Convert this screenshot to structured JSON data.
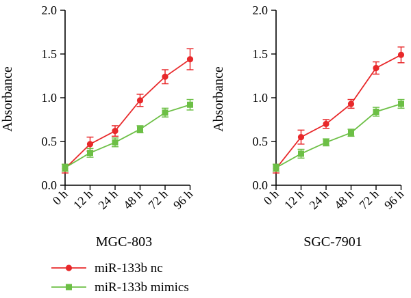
{
  "chart_data": [
    {
      "type": "line",
      "title": "MGC-803",
      "ylabel": "Absorbance",
      "xlabel": "",
      "categories": [
        "0 h",
        "12 h",
        "24 h",
        "48 h",
        "72 h",
        "96 h"
      ],
      "ylim": [
        0,
        2.0
      ],
      "yticks": [
        "0.0",
        "0.5",
        "1.0",
        "1.5",
        "2.0"
      ],
      "series": [
        {
          "name": "miR-133b nc",
          "color": "#e8282a",
          "marker": "circle",
          "values": [
            0.19,
            0.47,
            0.62,
            0.97,
            1.24,
            1.44
          ],
          "errors": [
            0.05,
            0.08,
            0.06,
            0.07,
            0.08,
            0.12
          ]
        },
        {
          "name": "miR-133b mimics",
          "color": "#6cbf45",
          "marker": "square",
          "values": [
            0.2,
            0.37,
            0.49,
            0.64,
            0.83,
            0.92
          ],
          "errors": [
            0.04,
            0.05,
            0.05,
            0.04,
            0.05,
            0.06
          ]
        }
      ]
    },
    {
      "type": "line",
      "title": "SGC-7901",
      "ylabel": "Absorbance",
      "xlabel": "",
      "categories": [
        "0 h",
        "12 h",
        "24 h",
        "48 h",
        "72 h",
        "96 h"
      ],
      "ylim": [
        0,
        2.0
      ],
      "yticks": [
        "0.0",
        "0.5",
        "1.0",
        "1.5",
        "2.0"
      ],
      "series": [
        {
          "name": "miR-133b nc",
          "color": "#e8282a",
          "marker": "circle",
          "values": [
            0.19,
            0.55,
            0.7,
            0.93,
            1.34,
            1.49
          ],
          "errors": [
            0.05,
            0.08,
            0.05,
            0.05,
            0.07,
            0.09
          ]
        },
        {
          "name": "miR-133b mimics",
          "color": "#6cbf45",
          "marker": "square",
          "values": [
            0.2,
            0.36,
            0.49,
            0.6,
            0.84,
            0.93
          ],
          "errors": [
            0.04,
            0.05,
            0.04,
            0.04,
            0.05,
            0.05
          ]
        }
      ]
    }
  ],
  "legend": {
    "items": [
      {
        "label": "miR-133b nc",
        "color": "#e8282a",
        "marker": "circle"
      },
      {
        "label": "miR-133b mimics",
        "color": "#6cbf45",
        "marker": "square"
      }
    ]
  }
}
